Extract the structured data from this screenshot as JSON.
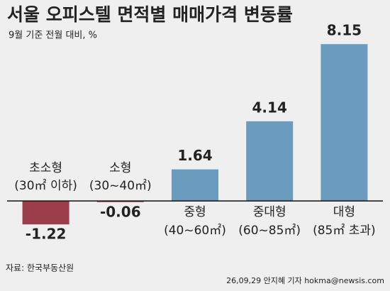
{
  "chart_data": {
    "type": "bar",
    "title": "서울 오피스텔 면적별 매매가격 변동률",
    "subtitle": "9월 기준 전월 대비, %",
    "categories": [
      "초소형",
      "소형",
      "중형",
      "중대형",
      "대형"
    ],
    "category_sublabels": [
      "(30㎡ 이하)",
      "(30~40㎡)",
      "(40~60㎡)",
      "(60~85㎡)",
      "(85㎡ 초과)"
    ],
    "values": [
      -1.22,
      -0.06,
      1.64,
      4.14,
      8.15
    ],
    "colors": [
      "#9c3d4b",
      "#9c3d4b",
      "#6b9bbd",
      "#6b9bbd",
      "#6b9bbd"
    ],
    "ylim": [
      -2.1,
      8.6
    ],
    "source": "자료: 한국부동산원",
    "credit": "26,09,29 안지혜 기자 hokma@newsis.com"
  }
}
